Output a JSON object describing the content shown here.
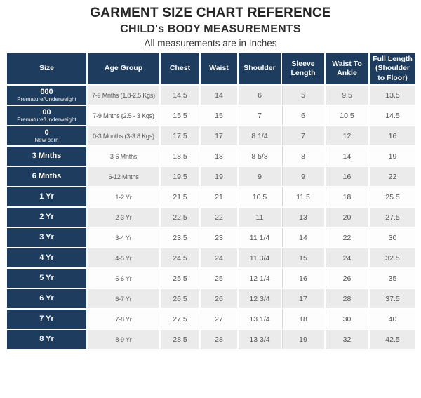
{
  "page": {
    "title": "GARMENT SIZE CHART REFERENCE",
    "subtitle": "CHILD's BODY MEASUREMENTS",
    "note": "All measurements are in Inches"
  },
  "colors": {
    "header_navy": "#1d3c5e",
    "stripe_gray": "#ebebeb",
    "row_white": "#fdfdfd",
    "value_text": "#555555",
    "header_text": "#ffffff",
    "title_text": "#2d2d2d"
  },
  "chart_data": {
    "type": "table",
    "title": "GARMENT SIZE CHART REFERENCE",
    "subtitle": "CHILD's BODY MEASUREMENTS",
    "note": "All measurements are in Inches",
    "columns": [
      "Size",
      "Age Group",
      "Chest",
      "Waist",
      "Shoulder",
      "Sleeve Length",
      "Waist To Ankle",
      "Full Length (Shoulder to Floor)"
    ],
    "rows": [
      {
        "size": "000",
        "size_sub": "Premature/Underweight",
        "age_group": "7-9 Mnths (1.8-2.5 Kgs)",
        "chest": "14.5",
        "waist": "14",
        "shoulder": "6",
        "sleeve_length": "5",
        "waist_to_ankle": "9.5",
        "full_length": "13.5"
      },
      {
        "size": "00",
        "size_sub": "Premature/Underweight",
        "age_group": "7-9 Mnths (2.5 - 3 Kgs)",
        "chest": "15.5",
        "waist": "15",
        "shoulder": "7",
        "sleeve_length": "6",
        "waist_to_ankle": "10.5",
        "full_length": "14.5"
      },
      {
        "size": "0",
        "size_sub": "New born",
        "age_group": "0-3 Months (3-3.8 Kgs)",
        "chest": "17.5",
        "waist": "17",
        "shoulder": "8 1/4",
        "sleeve_length": "7",
        "waist_to_ankle": "12",
        "full_length": "16"
      },
      {
        "size": "3 Mnths",
        "size_sub": "",
        "age_group": "3-6 Mnths",
        "chest": "18.5",
        "waist": "18",
        "shoulder": "8 5/8",
        "sleeve_length": "8",
        "waist_to_ankle": "14",
        "full_length": "19"
      },
      {
        "size": "6 Mnths",
        "size_sub": "",
        "age_group": "6-12 Mnths",
        "chest": "19.5",
        "waist": "19",
        "shoulder": "9",
        "sleeve_length": "9",
        "waist_to_ankle": "16",
        "full_length": "22"
      },
      {
        "size": "1 Yr",
        "size_sub": "",
        "age_group": "1-2 Yr",
        "chest": "21.5",
        "waist": "21",
        "shoulder": "10.5",
        "sleeve_length": "11.5",
        "waist_to_ankle": "18",
        "full_length": "25.5"
      },
      {
        "size": "2 Yr",
        "size_sub": "",
        "age_group": "2-3 Yr",
        "chest": "22.5",
        "waist": "22",
        "shoulder": "11",
        "sleeve_length": "13",
        "waist_to_ankle": "20",
        "full_length": "27.5"
      },
      {
        "size": "3 Yr",
        "size_sub": "",
        "age_group": "3-4 Yr",
        "chest": "23.5",
        "waist": "23",
        "shoulder": "11 1/4",
        "sleeve_length": "14",
        "waist_to_ankle": "22",
        "full_length": "30"
      },
      {
        "size": "4 Yr",
        "size_sub": "",
        "age_group": "4-5 Yr",
        "chest": "24.5",
        "waist": "24",
        "shoulder": "11 3/4",
        "sleeve_length": "15",
        "waist_to_ankle": "24",
        "full_length": "32.5"
      },
      {
        "size": "5 Yr",
        "size_sub": "",
        "age_group": "5-6 Yr",
        "chest": "25.5",
        "waist": "25",
        "shoulder": "12 1/4",
        "sleeve_length": "16",
        "waist_to_ankle": "26",
        "full_length": "35"
      },
      {
        "size": "6 Yr",
        "size_sub": "",
        "age_group": "6-7 Yr",
        "chest": "26.5",
        "waist": "26",
        "shoulder": "12 3/4",
        "sleeve_length": "17",
        "waist_to_ankle": "28",
        "full_length": "37.5"
      },
      {
        "size": "7 Yr",
        "size_sub": "",
        "age_group": "7-8 Yr",
        "chest": "27.5",
        "waist": "27",
        "shoulder": "13 1/4",
        "sleeve_length": "18",
        "waist_to_ankle": "30",
        "full_length": "40"
      },
      {
        "size": "8 Yr",
        "size_sub": "",
        "age_group": "8-9 Yr",
        "chest": "28.5",
        "waist": "28",
        "shoulder": "13 3/4",
        "sleeve_length": "19",
        "waist_to_ankle": "32",
        "full_length": "42.5"
      }
    ]
  }
}
